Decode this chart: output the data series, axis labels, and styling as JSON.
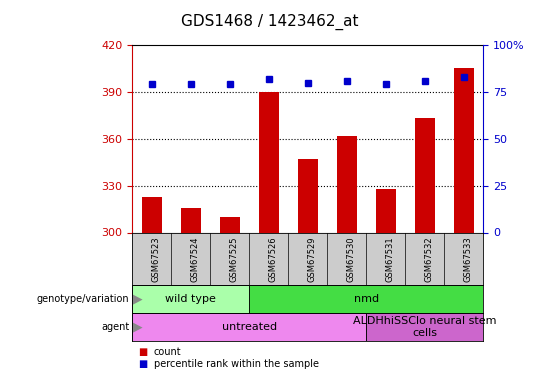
{
  "title": "GDS1468 / 1423462_at",
  "samples": [
    "GSM67523",
    "GSM67524",
    "GSM67525",
    "GSM67526",
    "GSM67529",
    "GSM67530",
    "GSM67531",
    "GSM67532",
    "GSM67533"
  ],
  "count_values": [
    323,
    316,
    310,
    390,
    347,
    362,
    328,
    373,
    405
  ],
  "percentile_values": [
    79,
    79,
    79,
    82,
    80,
    81,
    79,
    81,
    83
  ],
  "bar_color": "#cc0000",
  "dot_color": "#0000cc",
  "ylim_left": [
    300,
    420
  ],
  "ylim_right": [
    0,
    100
  ],
  "yticks_left": [
    300,
    330,
    360,
    390,
    420
  ],
  "yticks_right": [
    0,
    25,
    50,
    75,
    100
  ],
  "grid_values": [
    330,
    360,
    390
  ],
  "genotype_groups": [
    {
      "label": "wild type",
      "start": 0,
      "end": 3,
      "color": "#aaffaa"
    },
    {
      "label": "nmd",
      "start": 3,
      "end": 9,
      "color": "#44dd44"
    }
  ],
  "agent_groups": [
    {
      "label": "untreated",
      "start": 0,
      "end": 6,
      "color": "#ee88ee"
    },
    {
      "label": "ALDHhiSSClo neural stem\ncells",
      "start": 6,
      "end": 9,
      "color": "#cc66cc"
    }
  ],
  "sample_bg_color": "#cccccc",
  "plot_bg_color": "#ffffff",
  "label_arrow_color": "#888888",
  "title_fontsize": 11,
  "axis_label_fontsize": 7,
  "tick_fontsize": 8,
  "sample_fontsize": 6,
  "group_fontsize": 8,
  "legend_fontsize": 7
}
